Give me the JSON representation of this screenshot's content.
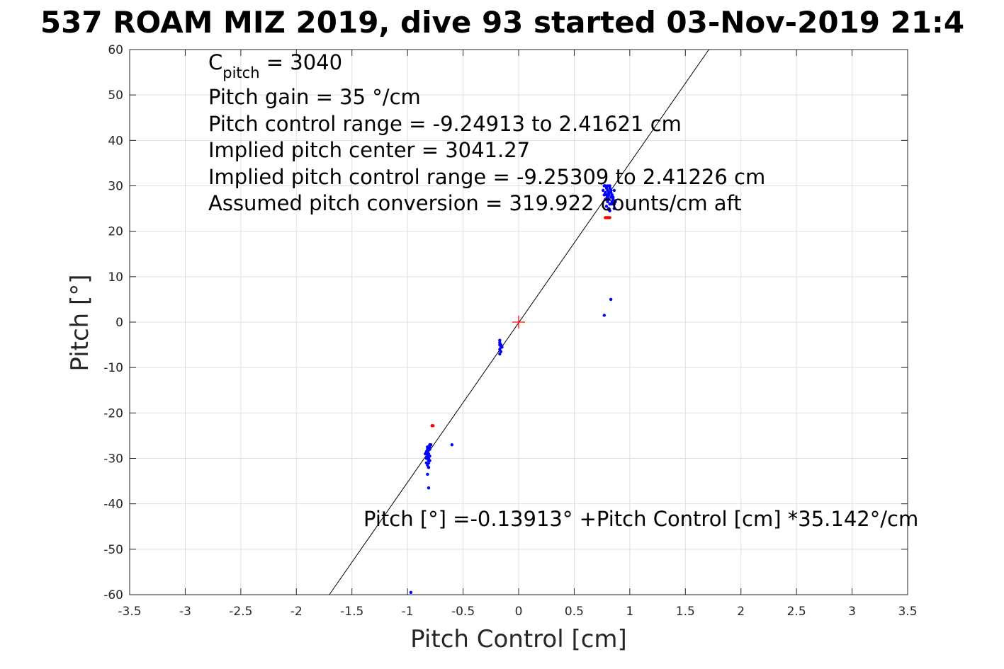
{
  "chart_data": {
    "type": "scatter",
    "title": "537 ROAM MIZ 2019, dive 93 started 03-Nov-2019 21:4",
    "xlabel": "Pitch Control [cm]",
    "ylabel": "Pitch [°]",
    "xlim": [
      -3.5,
      3.5
    ],
    "ylim": [
      -60,
      60
    ],
    "x_ticks": [
      -3.5,
      -3,
      -2.5,
      -2,
      -1.5,
      -1,
      -0.5,
      0,
      0.5,
      1,
      1.5,
      2,
      2.5,
      3,
      3.5
    ],
    "x_tick_labels": [
      "-3.5",
      "-3",
      "-2.5",
      "-2",
      "-1.5",
      "-1",
      "-0.5",
      "0",
      "0.5",
      "1",
      "1.5",
      "2",
      "2.5",
      "3",
      "3.5"
    ],
    "y_ticks": [
      -60,
      -50,
      -40,
      -30,
      -20,
      -10,
      0,
      10,
      20,
      30,
      40,
      50,
      60
    ],
    "y_tick_labels": [
      "-60",
      "-50",
      "-40",
      "-30",
      "-20",
      "-10",
      "0",
      "10",
      "20",
      "30",
      "40",
      "50",
      "60"
    ],
    "grid": true,
    "series": [
      {
        "color": "#0000ff",
        "marker": "dot",
        "x": [
          0.78,
          0.79,
          0.8,
          0.81,
          0.82,
          0.83,
          0.84,
          0.79,
          0.8,
          0.81,
          0.82,
          0.83,
          0.85,
          0.86,
          0.77,
          0.78,
          0.8,
          0.82,
          0.84,
          0.86,
          0.81,
          0.83,
          0.85,
          0.79,
          0.81,
          0.83,
          0.84,
          0.87,
          0.8,
          0.82,
          0.86,
          0.76,
          0.83,
          0.85,
          0.82,
          0.84,
          0.8,
          0.78,
          0.77,
          0.83,
          0.77,
          -0.17,
          -0.17,
          -0.16,
          -0.17,
          -0.16,
          -0.17,
          -0.16,
          -0.15,
          -0.17,
          -0.82,
          -0.81,
          -0.83,
          -0.8,
          -0.82,
          -0.81,
          -0.83,
          -0.8,
          -0.79,
          -0.82,
          -0.81,
          -0.84,
          -0.8,
          -0.82,
          -0.81,
          -0.83,
          -0.82,
          -0.81,
          -0.8,
          -0.82,
          -0.83,
          -0.81,
          -0.82,
          -0.8,
          -0.82,
          -0.81,
          -0.81,
          -0.6,
          -0.97
        ],
        "y": [
          30,
          29.5,
          29,
          28.5,
          30,
          29,
          28,
          28,
          27.5,
          27,
          29.5,
          28.5,
          27.5,
          29,
          28,
          27,
          30,
          26,
          26.5,
          26,
          28,
          29,
          27,
          25.5,
          25,
          27.5,
          28,
          26.5,
          26.5,
          26,
          25,
          29,
          28.5,
          27,
          24.5,
          26,
          27,
          28.5,
          30,
          5,
          1.5,
          -4,
          -5,
          -5.5,
          -6,
          -6.5,
          -4.5,
          -5,
          -5.5,
          -7,
          -27.5,
          -28,
          -29,
          -27,
          -30,
          -31,
          -28.5,
          -27.5,
          -27,
          -29.5,
          -30.5,
          -29,
          -28,
          -31.5,
          -32,
          -30,
          -28.5,
          -29,
          -30.5,
          -27.5,
          -31,
          -32,
          -28,
          -29.5,
          -33.5,
          -36.5,
          -30,
          -27,
          -59.5
        ]
      },
      {
        "color": "#ff0000",
        "marker": "dot",
        "x": [
          0.78,
          0.79,
          0.8,
          0.81,
          0.82,
          -0.78,
          -0.77
        ],
        "y": [
          23,
          23,
          23,
          23,
          23,
          -22.8,
          -22.8
        ]
      }
    ],
    "center_marker": {
      "x": 0,
      "y": 0,
      "color": "#ff0000",
      "shape": "plus"
    },
    "fit_line": {
      "color": "#000000",
      "intercept": -0.13913,
      "slope": 35.142
    },
    "annotations": {
      "c_pitch_base": "C",
      "c_pitch_sub": "pitch",
      "c_pitch_rest": " = 3040",
      "lines": [
        "Pitch gain = 35 °/cm",
        "Pitch control range = -9.24913 to 2.41621 cm",
        "Implied pitch center = 3041.27",
        "Implied pitch control range = -9.25309 to 2.41226 cm",
        "Assumed pitch conversion = 319.922 counts/cm aft"
      ],
      "fit_equation": "Pitch [°] =-0.13913° +Pitch Control [cm] *35.142°/cm"
    }
  }
}
